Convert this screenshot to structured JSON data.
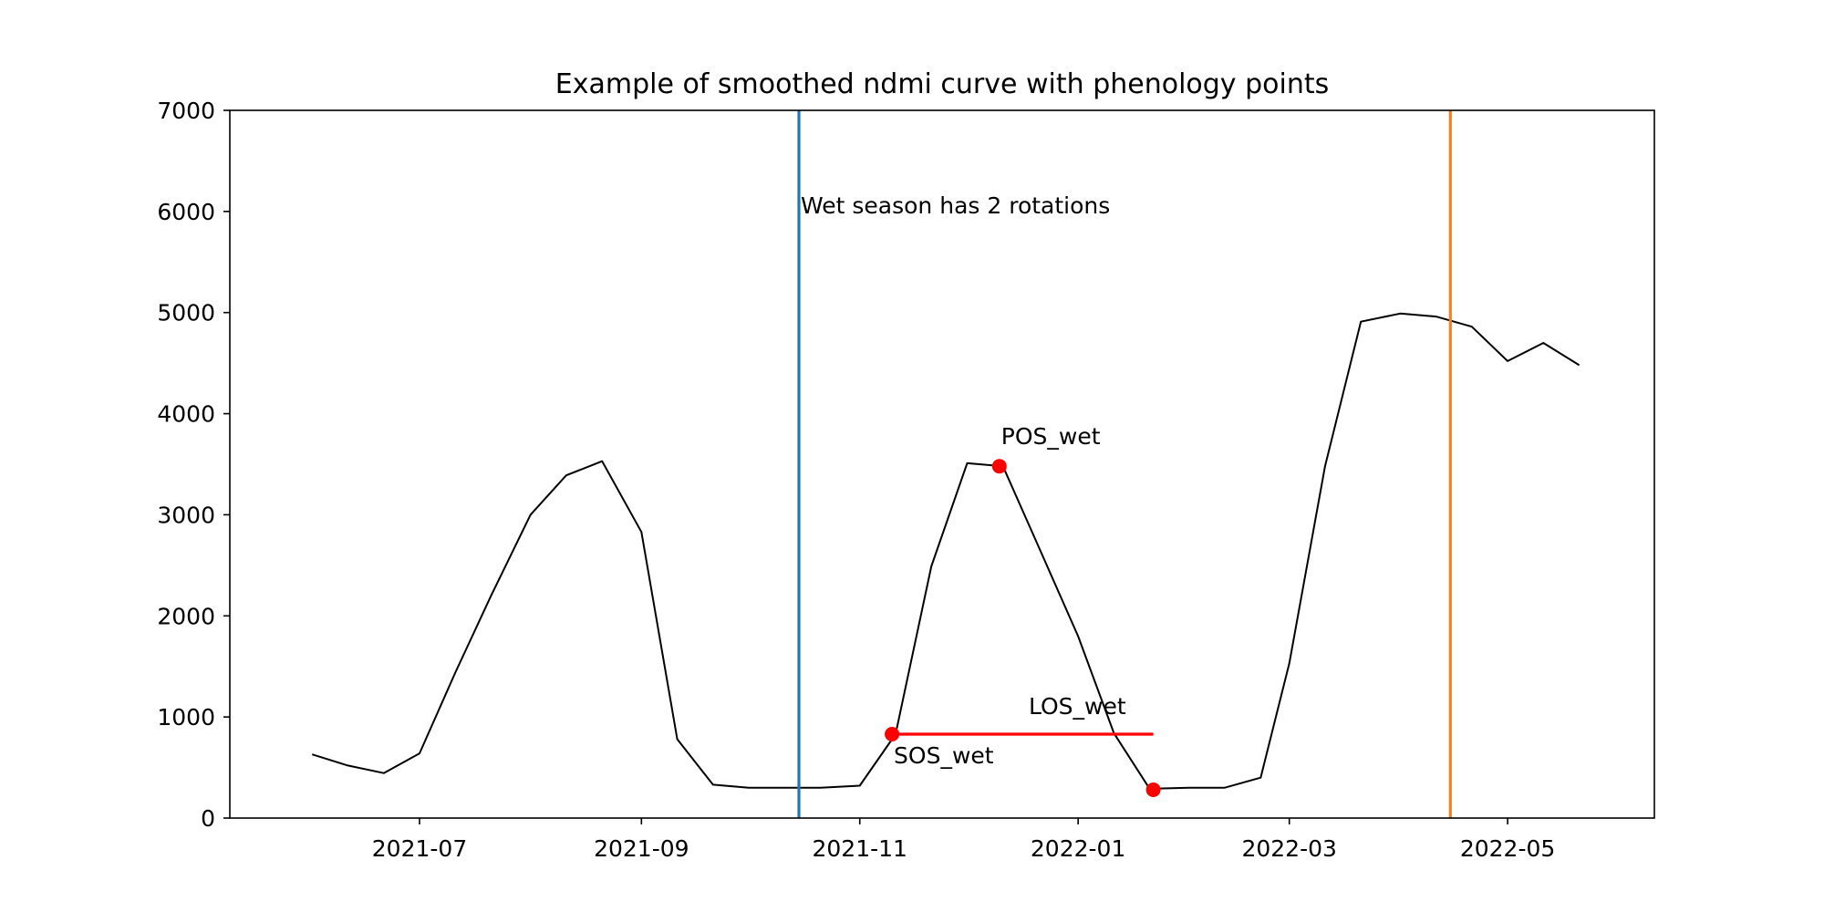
{
  "chart_data": {
    "type": "line",
    "title": "Example of smoothed ndmi curve with phenology points",
    "xlabel": "",
    "ylabel": "",
    "ylim": [
      0,
      7000
    ],
    "xlim": [
      "2021-05-09",
      "2022-06-11"
    ],
    "x_ticks": [
      "2021-07",
      "2021-09",
      "2021-11",
      "2022-01",
      "2022-03",
      "2022-05"
    ],
    "y_ticks": [
      0,
      1000,
      2000,
      3000,
      4000,
      5000,
      6000,
      7000
    ],
    "grid": false,
    "series": [
      {
        "color": "#000000",
        "points": [
          [
            "2021-06-01",
            630
          ],
          [
            "2021-06-11",
            520
          ],
          [
            "2021-06-21",
            445
          ],
          [
            "2021-07-01",
            640
          ],
          [
            "2021-07-11",
            1440
          ],
          [
            "2021-07-21",
            2200
          ],
          [
            "2021-08-01",
            3000
          ],
          [
            "2021-08-11",
            3390
          ],
          [
            "2021-08-21",
            3530
          ],
          [
            "2021-09-01",
            2830
          ],
          [
            "2021-09-11",
            780
          ],
          [
            "2021-09-21",
            330
          ],
          [
            "2021-10-01",
            300
          ],
          [
            "2021-10-11",
            300
          ],
          [
            "2021-10-21",
            300
          ],
          [
            "2021-11-01",
            320
          ],
          [
            "2021-11-11",
            830
          ],
          [
            "2021-11-21",
            2490
          ],
          [
            "2021-12-01",
            3510
          ],
          [
            "2021-12-11",
            3480
          ],
          [
            "2021-12-21",
            2680
          ],
          [
            "2022-01-01",
            1800
          ],
          [
            "2022-01-11",
            840
          ],
          [
            "2022-01-21",
            290
          ],
          [
            "2022-02-01",
            300
          ],
          [
            "2022-02-11",
            300
          ],
          [
            "2022-02-21",
            400
          ],
          [
            "2022-03-01",
            1530
          ],
          [
            "2022-03-11",
            3480
          ],
          [
            "2022-03-21",
            4910
          ],
          [
            "2022-04-01",
            4990
          ],
          [
            "2022-04-11",
            4960
          ],
          [
            "2022-04-21",
            4860
          ],
          [
            "2022-05-01",
            4520
          ],
          [
            "2022-05-11",
            4700
          ],
          [
            "2022-05-21",
            4480
          ]
        ]
      }
    ],
    "vlines": [
      {
        "x": "2021-10-15",
        "color": "#1f77b4"
      },
      {
        "x": "2022-04-15",
        "color": "#ff7f0e"
      }
    ],
    "phenology_points": [
      {
        "label": "SOS_wet",
        "x": "2021-11-10",
        "y": 830,
        "color": "#ff0000"
      },
      {
        "label": "POS_wet",
        "x": "2021-12-10",
        "y": 3480,
        "color": "#ff0000"
      },
      {
        "label": "",
        "x": "2022-01-22",
        "y": 280,
        "color": "#ff0000"
      }
    ],
    "los_segment": {
      "label": "LOS_wet",
      "x_start": "2021-11-10",
      "x_end": "2022-01-22",
      "y": 830,
      "color": "#ff0000"
    },
    "annotations": [
      {
        "text": "Wet season has 2 rotations",
        "x": "2021-10-15",
        "y": 6000
      }
    ]
  }
}
